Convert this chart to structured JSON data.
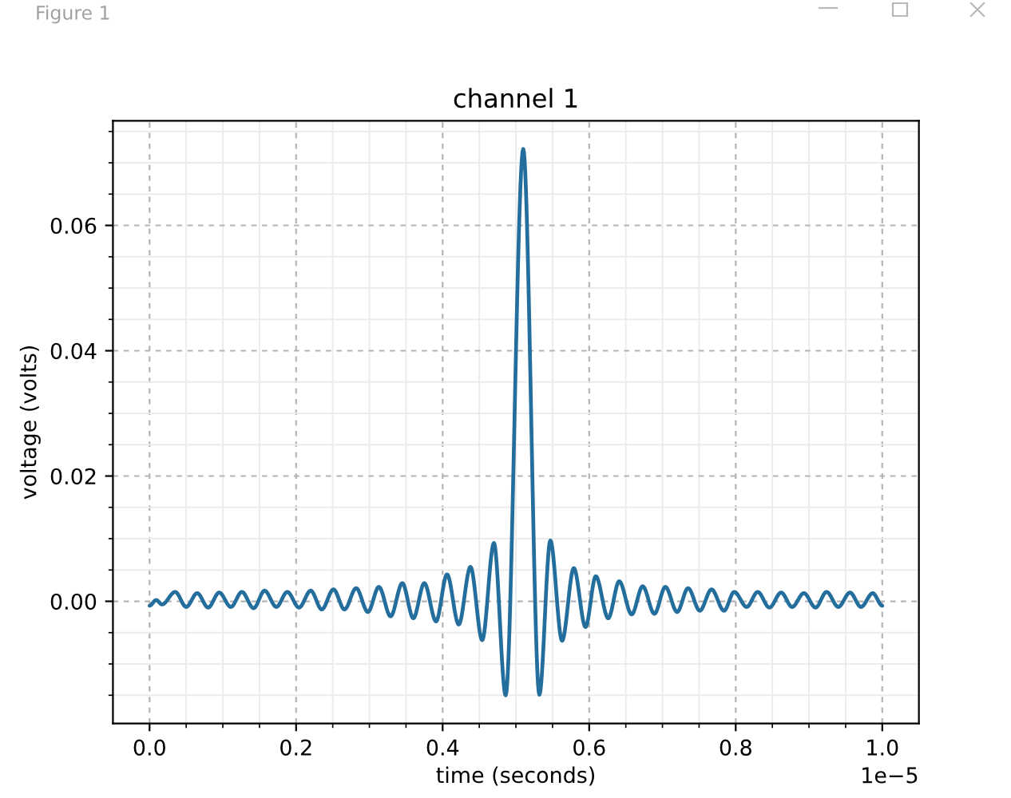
{
  "chart_data": {
    "type": "line",
    "title": "channel 1",
    "xlabel": "time (seconds)",
    "ylabel": "voltage (volts)",
    "annotations": [
      "Figure 1",
      "1e−5"
    ],
    "x": [
      0.0,
      0.009,
      0.017,
      0.035,
      0.05,
      0.065,
      0.08,
      0.095,
      0.111,
      0.126,
      0.142,
      0.157,
      0.173,
      0.188,
      0.204,
      0.22,
      0.235,
      0.251,
      0.266,
      0.282,
      0.298,
      0.313,
      0.329,
      0.345,
      0.36,
      0.375,
      0.391,
      0.406,
      0.422,
      0.438,
      0.454,
      0.47,
      0.486,
      0.51,
      0.532,
      0.547,
      0.563,
      0.579,
      0.595,
      0.609,
      0.626,
      0.641,
      0.658,
      0.673,
      0.689,
      0.704,
      0.72,
      0.735,
      0.751,
      0.767,
      0.784,
      0.798,
      0.815,
      0.83,
      0.846,
      0.862,
      0.877,
      0.893,
      0.909,
      0.924,
      0.94,
      0.956,
      0.971,
      0.987,
      1.0
    ],
    "series": [
      {
        "color": "#236e9c",
        "values": [
          -0.0007,
          0.0002,
          -0.0005,
          0.0015,
          -0.0009,
          0.0013,
          -0.001,
          0.0014,
          -0.0009,
          0.0015,
          -0.0011,
          0.0017,
          -0.0009,
          0.0015,
          -0.001,
          0.0017,
          -0.0013,
          0.0019,
          -0.0013,
          0.0021,
          -0.0017,
          0.0023,
          -0.0024,
          0.0029,
          -0.0027,
          0.0029,
          -0.0032,
          0.0043,
          -0.0037,
          0.0055,
          -0.0062,
          0.0093,
          -0.015,
          0.0722,
          -0.0149,
          0.0097,
          -0.0063,
          0.0053,
          -0.0041,
          0.004,
          -0.0027,
          0.0032,
          -0.0021,
          0.0024,
          -0.002,
          0.0023,
          -0.0017,
          0.0021,
          -0.0015,
          0.0019,
          -0.0015,
          0.0015,
          -0.0009,
          0.0015,
          -0.001,
          0.0014,
          -0.0009,
          0.0013,
          -0.001,
          0.0015,
          -0.0009,
          0.0014,
          -0.0009,
          0.0013,
          -0.0007
        ]
      }
    ],
    "xlim": [
      -0.05,
      1.05
    ],
    "ylim": [
      -0.0195,
      0.0767
    ],
    "xticks": [
      {
        "value": 0,
        "label": "0.0"
      },
      {
        "value": 0.05,
        "label": null
      },
      {
        "value": 0.1,
        "label": null
      },
      {
        "value": 0.15,
        "label": null
      },
      0.2,
      {
        "value": 0.25,
        "label": null
      },
      {
        "value": 0.3,
        "label": null
      },
      {
        "value": 0.35,
        "label": null
      },
      0.4,
      {
        "value": 0.45,
        "label": null
      },
      {
        "value": 0.5,
        "label": null
      },
      {
        "value": 0.55,
        "label": null
      },
      0.6,
      {
        "value": 0.65,
        "label": null
      },
      {
        "value": 0.7,
        "label": null
      },
      {
        "value": 0.75,
        "label": null
      },
      0.8,
      {
        "value": 0.85,
        "label": null
      },
      {
        "value": 0.9,
        "label": null
      },
      {
        "value": 0.95,
        "label": null
      },
      {
        "value": 1,
        "label": "1.0"
      }
    ],
    "yticks": [
      {
        "value": -0.015,
        "label": null
      },
      {
        "value": -0.01,
        "label": null
      },
      {
        "value": -0.005,
        "label": null
      },
      {
        "value": 0,
        "label": "0.00"
      },
      {
        "value": 0.005,
        "label": null
      },
      {
        "value": 0.01,
        "label": null
      },
      {
        "value": 0.015,
        "label": null
      },
      0.02,
      {
        "value": 0.025,
        "label": null
      },
      {
        "value": 0.03,
        "label": null
      },
      {
        "value": 0.035,
        "label": null
      },
      0.04,
      {
        "value": 0.045,
        "label": null
      },
      {
        "value": 0.05,
        "label": null
      },
      {
        "value": 0.055,
        "label": null
      },
      0.06,
      {
        "value": 0.065,
        "label": null
      },
      {
        "value": 0.07,
        "label": null
      },
      {
        "value": 0.075,
        "label": null
      }
    ],
    "grid": true
  }
}
